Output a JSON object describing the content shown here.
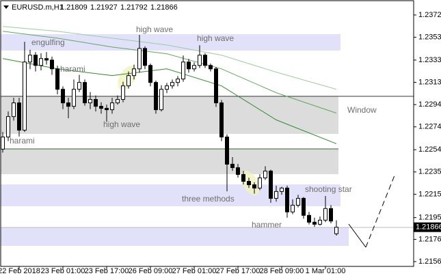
{
  "chart_data": {
    "type": "candlestick",
    "symbol": "EURUSD.m,H1",
    "categories": [
      null,
      null,
      null,
      "22 Feb 2018",
      null,
      null,
      null,
      null,
      null,
      null,
      null,
      "23 Feb 01:00",
      null,
      null,
      null,
      null,
      null,
      null,
      null,
      "23 Feb 17:00",
      null,
      null,
      null,
      null,
      null,
      null,
      null,
      "26 Feb 09:00",
      null,
      null,
      null,
      null,
      null,
      null,
      null,
      "27 Feb 01:00",
      null,
      null,
      null,
      null,
      null,
      null,
      null,
      "27 Feb 17:00",
      null,
      null,
      null,
      null,
      null,
      null,
      null,
      "28 Feb 09:00",
      null,
      null,
      null,
      null,
      null,
      null,
      null,
      "1 Mar 01:00",
      null,
      null
    ],
    "open": [
      1.2255,
      1.22656,
      1.22835,
      1.22955,
      1.22716,
      1.23313,
      1.23373,
      1.23283,
      1.23343,
      1.2333,
      1.23253,
      1.23074,
      1.22955,
      1.22925,
      1.23074,
      1.23134,
      1.22955,
      1.22985,
      1.22925,
      1.22907,
      1.22895,
      1.22955,
      1.22985,
      1.23104,
      1.23194,
      1.23253,
      1.23432,
      1.23283,
      1.23134,
      1.22895,
      1.23074,
      1.23104,
      1.23134,
      1.23164,
      1.23313,
      1.23253,
      1.23283,
      1.23373,
      1.23283,
      1.23253,
      1.22955,
      1.22656,
      1.22418,
      1.22388,
      1.22328,
      1.22268,
      1.22238,
      1.22209,
      1.22298,
      1.22358,
      1.22119,
      1.22179,
      1.22209,
      1.22,
      1.22059,
      1.22119,
      1.2197,
      1.2191,
      1.21892,
      1.21928,
      1.2203,
      1.21809
    ],
    "high": [
      1.227,
      1.2288,
      1.23,
      1.23,
      1.2349,
      1.2342,
      1.234,
      1.2339,
      1.234,
      1.2336,
      1.2328,
      1.231,
      1.23,
      1.2316,
      1.232,
      1.2316,
      1.2305,
      1.2302,
      1.2296,
      1.2294,
      1.23,
      1.2302,
      1.2314,
      1.2323,
      1.2329,
      1.2355,
      1.2345,
      1.233,
      1.2315,
      1.2311,
      1.2313,
      1.2316,
      1.2319,
      1.2337,
      1.2334,
      1.2331,
      1.2346,
      1.2339,
      1.233,
      1.2327,
      1.2298,
      1.2268,
      1.2248,
      1.2242,
      1.2236,
      1.223,
      1.2226,
      1.2233,
      1.224,
      1.2237,
      1.2223,
      1.2222,
      1.2223,
      1.2211,
      1.2215,
      1.2213,
      1.22,
      1.2195,
      1.2196,
      1.2214,
      1.2206,
      1.21927
    ],
    "low": [
      1.2252,
      1.2262,
      1.228,
      1.2266,
      1.227,
      1.2325,
      1.2323,
      1.2324,
      1.2329,
      1.232,
      1.2303,
      1.229,
      1.2282,
      1.229,
      1.2305,
      1.2293,
      1.229,
      1.2288,
      1.2286,
      1.2279,
      1.2286,
      1.2294,
      1.2296,
      1.2308,
      1.2316,
      1.2322,
      1.2325,
      1.231,
      1.2286,
      1.2288,
      1.2304,
      1.2308,
      1.231,
      1.2314,
      1.2322,
      1.2323,
      1.2326,
      1.2326,
      1.2323,
      1.2292,
      1.2262,
      1.2218,
      1.2236,
      1.223,
      1.2224,
      1.2221,
      1.2216,
      1.2219,
      1.2228,
      1.2208,
      1.2209,
      1.2215,
      1.2195,
      1.2198,
      1.2204,
      1.2194,
      1.2189,
      1.2187,
      1.2188,
      1.2191,
      1.219,
      1.21792
    ],
    "close": [
      1.22656,
      1.22835,
      1.22955,
      1.22716,
      1.23313,
      1.23373,
      1.23283,
      1.23343,
      1.2333,
      1.23253,
      1.23074,
      1.22955,
      1.22925,
      1.23074,
      1.23134,
      1.22955,
      1.22985,
      1.22925,
      1.22907,
      1.22895,
      1.22955,
      1.22985,
      1.23104,
      1.23194,
      1.23253,
      1.23432,
      1.23283,
      1.23134,
      1.22895,
      1.23074,
      1.23104,
      1.23134,
      1.23164,
      1.23313,
      1.23253,
      1.23283,
      1.23373,
      1.23283,
      1.23253,
      1.22955,
      1.22656,
      1.22418,
      1.22388,
      1.22328,
      1.22268,
      1.22238,
      1.22209,
      1.22298,
      1.22358,
      1.22119,
      1.22179,
      1.22209,
      1.22,
      1.22059,
      1.22119,
      1.2197,
      1.2191,
      1.21892,
      1.21928,
      1.2203,
      1.2192,
      1.21866
    ],
    "moving_averages": [
      {
        "color": "#9ccc9c",
        "x": [
          0,
          10,
          20,
          30,
          40,
          50,
          61
        ],
        "values": [
          1.23624,
          1.23582,
          1.23522,
          1.23462,
          1.23373,
          1.23224,
          1.23074
        ]
      },
      {
        "color": "#5fa65f",
        "x": [
          0,
          10,
          20,
          30,
          40,
          50,
          61
        ],
        "values": [
          1.23582,
          1.23522,
          1.23444,
          1.23385,
          1.23253,
          1.23044,
          1.22865
        ]
      },
      {
        "color": "#2e8b2e",
        "x": [
          0,
          10,
          20,
          30,
          40,
          50,
          61
        ],
        "values": [
          1.23343,
          1.23253,
          1.23194,
          1.23253,
          1.23104,
          1.22806,
          1.22597
        ]
      }
    ],
    "annotations": [
      "engulfing",
      "harami",
      "high wave",
      "high wave",
      "high wave",
      "harami",
      "Window",
      "three methods",
      "shooting star",
      "hammer"
    ],
    "ylim": [
      1.21523,
      1.2385
    ],
    "yticks": [
      1.23725,
      {
        "value": 1.2353,
        "label": "1.23530"
      },
      {
        "value": 1.2333,
        "label": "1.23330"
      },
      1.23135,
      {
        "value": 1.2294,
        "label": "1.22940"
      },
      1.22745,
      1.22545,
      {
        "value": 1.2235,
        "label": "1.22350"
      },
      1.22155,
      {
        "value": 1.2195,
        "label": "1.21950"
      },
      {
        "value": 1.2176,
        "label": "1.21760"
      },
      1.21565
    ]
  }
}
